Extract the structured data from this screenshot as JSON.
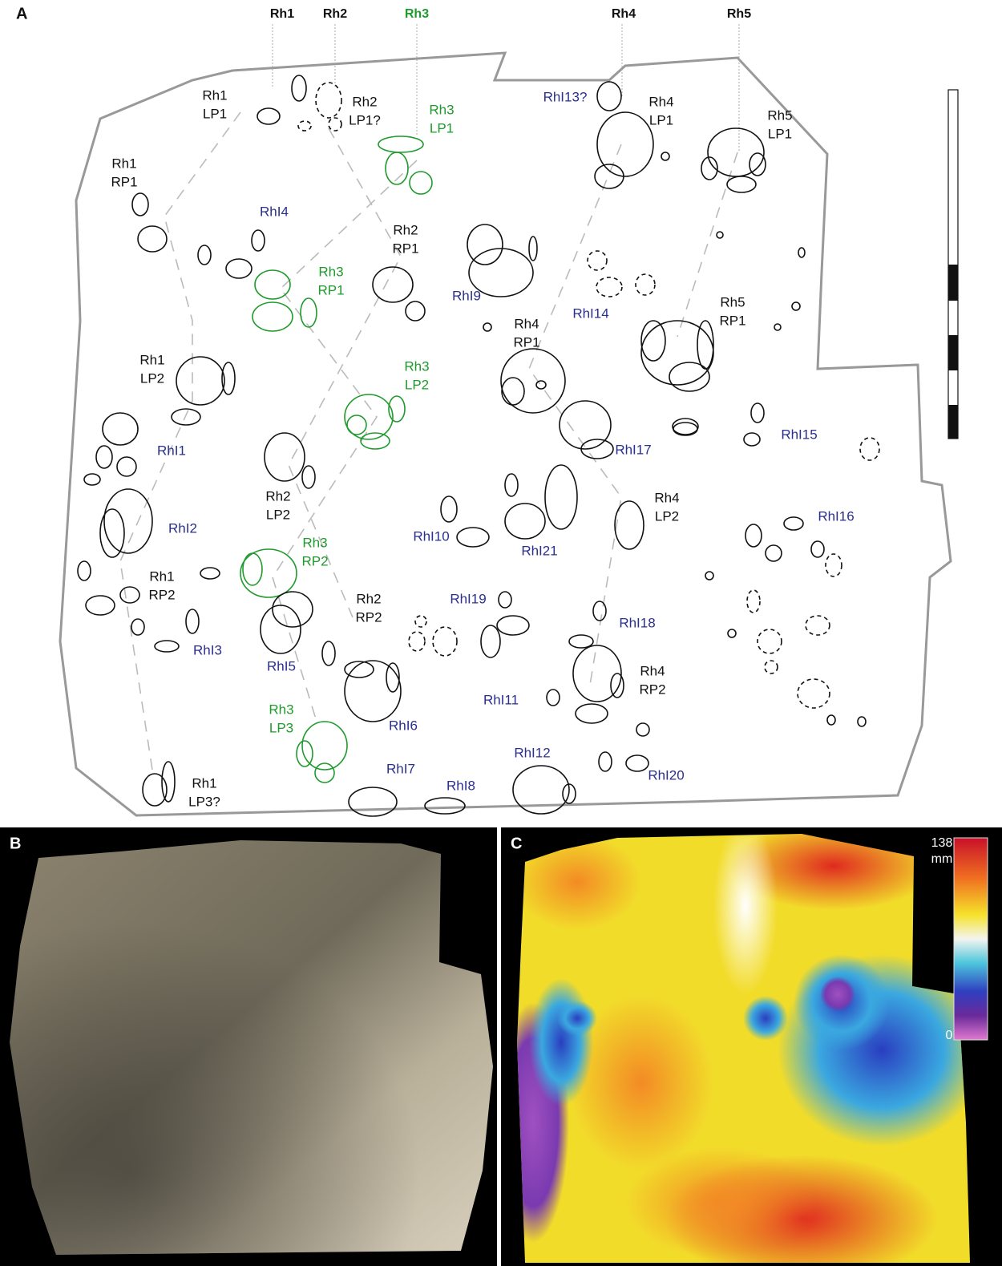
{
  "panel_a": {
    "label": "A",
    "headers": [
      "Rh1",
      "Rh2",
      "Rh3",
      "Rh4",
      "Rh5"
    ],
    "labels": [
      [
        "Rh1",
        "LP1"
      ],
      [
        "Rh2",
        "LP1?"
      ],
      [
        "Rh3",
        "LP1"
      ],
      [
        "RhI13?"
      ],
      [
        "Rh4",
        "LP1"
      ],
      [
        "Rh5",
        "LP1"
      ],
      [
        "Rh1",
        "RP1"
      ],
      [
        "RhI4"
      ],
      [
        "Rh2",
        "RP1"
      ],
      [
        "Rh3",
        "RP1"
      ],
      [
        "RhI9"
      ],
      [
        "RhI14"
      ],
      [
        "Rh5",
        "RP1"
      ],
      [
        "Rh4",
        "RP1"
      ],
      [
        "Rh1",
        "LP2"
      ],
      [
        "Rh3",
        "LP2"
      ],
      [
        "RhI1"
      ],
      [
        "RhI17"
      ],
      [
        "RhI15"
      ],
      [
        "Rh2",
        "LP2"
      ],
      [
        "Rh4",
        "LP2"
      ],
      [
        "RhI16"
      ],
      [
        "RhI2"
      ],
      [
        "RhI10"
      ],
      [
        "RhI21"
      ],
      [
        "Rh3",
        "RP2"
      ],
      [
        "Rh1",
        "RP2"
      ],
      [
        "RhI19"
      ],
      [
        "Rh2",
        "RP2"
      ],
      [
        "RhI18"
      ],
      [
        "RhI3"
      ],
      [
        "RhI5"
      ],
      [
        "Rh4",
        "RP2"
      ],
      [
        "RhI11"
      ],
      [
        "Rh3",
        "LP3"
      ],
      [
        "RhI6"
      ],
      [
        "RhI12"
      ],
      [
        "RhI7"
      ],
      [
        "RhI20"
      ],
      [
        "RhI8"
      ],
      [
        "Rh1",
        "LP3?"
      ]
    ]
  },
  "panel_b": {
    "label": "B"
  },
  "panel_c": {
    "label": "C",
    "colorbar_max": "138",
    "colorbar_unit": "mm",
    "colorbar_min": "0"
  }
}
